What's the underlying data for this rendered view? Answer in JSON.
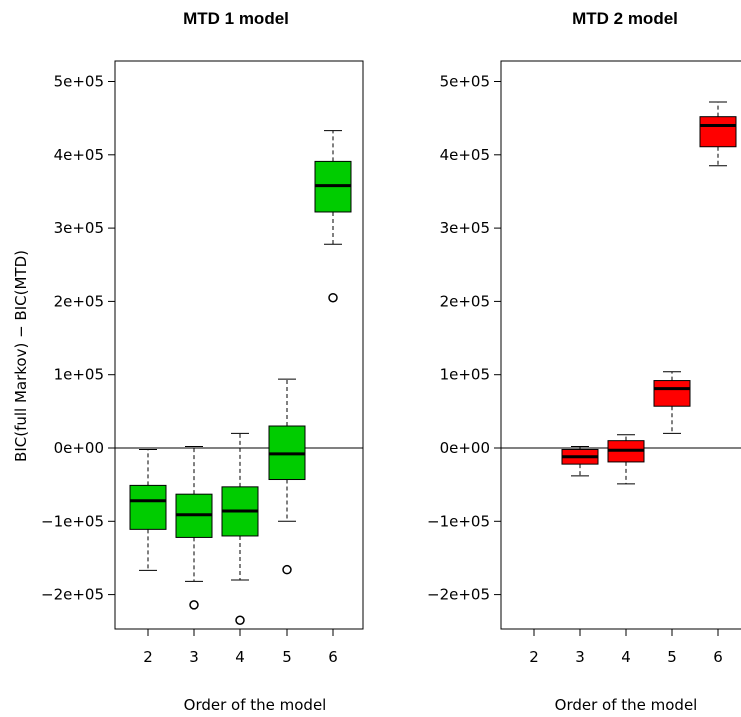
{
  "chart_data": [
    {
      "type": "box",
      "title": "MTD 1 model",
      "xlabel": "Order of the model",
      "ylabel": "BIC(full Markov) − BIC(MTD)",
      "categories": [
        "2",
        "3",
        "4",
        "5",
        "6"
      ],
      "yticks": [
        "5e+05",
        "4e+05",
        "3e+05",
        "2e+05",
        "1e+05",
        "0e+00",
        "−1e+05",
        "−2e+05"
      ],
      "ylim": [
        -250000,
        520000
      ],
      "reference_line": 0,
      "box_color": "#00cc00",
      "boxes": [
        {
          "category": "2",
          "whisker_low": -167000,
          "q1": -111000,
          "median": -72000,
          "q3": -51000,
          "whisker_high": -2000,
          "outliers": []
        },
        {
          "category": "3",
          "whisker_low": -182000,
          "q1": -122000,
          "median": -91000,
          "q3": -63000,
          "whisker_high": 2000,
          "outliers": [
            -214000
          ]
        },
        {
          "category": "4",
          "whisker_low": -180000,
          "q1": -120000,
          "median": -86000,
          "q3": -53000,
          "whisker_high": 20000,
          "outliers": [
            -235000
          ]
        },
        {
          "category": "5",
          "whisker_low": -100000,
          "q1": -43000,
          "median": -8000,
          "q3": 30000,
          "whisker_high": 94000,
          "outliers": [
            -166000
          ]
        },
        {
          "category": "6",
          "whisker_low": 278000,
          "q1": 322000,
          "median": 358000,
          "q3": 391000,
          "whisker_high": 433000,
          "outliers": [
            205000
          ]
        }
      ]
    },
    {
      "type": "box",
      "title": "MTD 2 model",
      "xlabel": "Order of the model",
      "ylabel": "",
      "categories": [
        "2",
        "3",
        "4",
        "5",
        "6"
      ],
      "yticks": [
        "5e+05",
        "4e+05",
        "3e+05",
        "2e+05",
        "1e+05",
        "0e+00",
        "−1e+05",
        "−2e+05"
      ],
      "ylim": [
        -250000,
        520000
      ],
      "reference_line": 0,
      "box_color": "#ff0000",
      "boxes": [
        {
          "category": "3",
          "whisker_low": -38000,
          "q1": -22000,
          "median": -12000,
          "q3": -2000,
          "whisker_high": 2000,
          "outliers": []
        },
        {
          "category": "4",
          "whisker_low": -49000,
          "q1": -19000,
          "median": -3000,
          "q3": 10000,
          "whisker_high": 18000,
          "outliers": []
        },
        {
          "category": "5",
          "whisker_low": 20000,
          "q1": 57000,
          "median": 81000,
          "q3": 92000,
          "whisker_high": 104000,
          "outliers": []
        },
        {
          "category": "6",
          "whisker_low": 385000,
          "q1": 411000,
          "median": 440000,
          "q3": 452000,
          "whisker_high": 472000,
          "outliers": []
        }
      ]
    }
  ]
}
